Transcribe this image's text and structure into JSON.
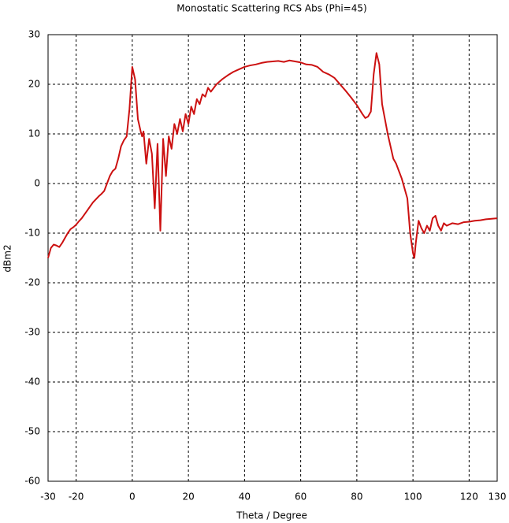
{
  "chart_data": {
    "type": "line",
    "title": "Monostatic Scattering RCS Abs (Phi=45)",
    "x_label": "Theta / Degree",
    "y_label": "dBm2",
    "color": "#cc1111",
    "xlim": [
      -30,
      130
    ],
    "ylim": [
      -60,
      30
    ],
    "xticks": [
      -30,
      -20,
      0,
      20,
      40,
      60,
      80,
      100,
      120,
      130
    ],
    "yticks": [
      -60,
      -50,
      -40,
      -30,
      -20,
      -10,
      0,
      10,
      20,
      30
    ],
    "grid": true,
    "x": [
      -30,
      -29,
      -28,
      -27,
      -26,
      -25,
      -24,
      -23,
      -22,
      -21,
      -20,
      -19,
      -18,
      -17,
      -16,
      -15,
      -14,
      -13,
      -12,
      -11,
      -10,
      -9,
      -8,
      -7,
      -6,
      -5,
      -4,
      -3,
      -2,
      -1,
      0,
      1,
      2,
      3,
      3.5,
      4,
      5,
      6,
      7,
      8,
      9,
      10,
      11,
      12,
      13,
      14,
      15,
      16,
      17,
      18,
      19,
      20,
      21,
      22,
      23,
      24,
      25,
      26,
      27,
      28,
      30,
      32,
      34,
      36,
      38,
      40,
      42,
      44,
      46,
      48,
      50,
      52,
      54,
      56,
      58,
      60,
      62,
      64,
      66,
      68,
      70,
      72,
      74,
      76,
      78,
      80,
      82,
      83,
      84,
      85,
      86,
      87,
      88,
      89,
      90,
      91,
      92,
      93,
      94,
      95,
      96,
      97,
      98,
      99,
      100,
      100.5,
      101,
      102,
      103,
      104,
      105,
      106,
      107,
      108,
      109,
      110,
      111,
      112,
      114,
      116,
      118,
      120,
      122,
      124,
      126,
      128,
      130
    ],
    "values": [
      -15,
      -13,
      -12.3,
      -12.5,
      -12.8,
      -12,
      -11,
      -10,
      -9.2,
      -8.8,
      -8.3,
      -7.6,
      -7,
      -6.2,
      -5.4,
      -4.6,
      -3.8,
      -3.2,
      -2.6,
      -2.1,
      -1.5,
      0,
      1.5,
      2.5,
      3,
      5,
      7.5,
      8.7,
      9.5,
      15,
      23.5,
      21,
      13,
      10.5,
      9.5,
      10.5,
      4,
      9,
      6,
      -5,
      8,
      -9.5,
      9,
      1.5,
      9.5,
      7,
      12,
      10,
      13,
      10.5,
      14,
      12,
      15.5,
      14,
      17,
      16,
      18,
      17.5,
      19.3,
      18.5,
      20,
      21,
      21.8,
      22.5,
      23,
      23.5,
      23.8,
      24,
      24.3,
      24.5,
      24.6,
      24.7,
      24.5,
      24.8,
      24.6,
      24.4,
      24,
      23.9,
      23.5,
      22.5,
      22,
      21.3,
      20,
      18.7,
      17.3,
      15.8,
      14,
      13.2,
      13.5,
      14.5,
      22,
      26.3,
      24,
      16,
      13,
      10,
      7.5,
      5,
      4,
      2.5,
      1,
      -1,
      -3,
      -10,
      -14,
      -15,
      -12,
      -7.5,
      -9,
      -10,
      -8.5,
      -9.5,
      -7,
      -6.5,
      -8.5,
      -9.5,
      -8,
      -8.5,
      -8,
      -8.2,
      -7.8,
      -7.7,
      -7.5,
      -7.4,
      -7.2,
      -7.1,
      -7
    ]
  }
}
